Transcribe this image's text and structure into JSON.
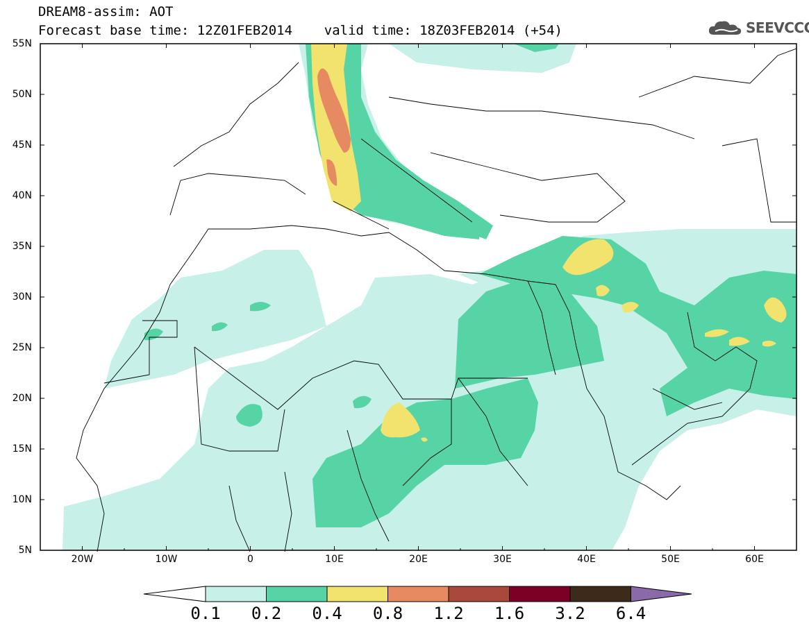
{
  "title": {
    "line1": "DREAM8-assim: AOT",
    "line2": "Forecast base time: 12Z01FEB2014    valid time: 18Z03FEB2014 (+54)"
  },
  "logo": {
    "text": "SEEVCCC",
    "icon": "cloud-icon"
  },
  "axes": {
    "lat_labels": [
      "55N",
      "50N",
      "45N",
      "40N",
      "35N",
      "30N",
      "25N",
      "20N",
      "15N",
      "10N",
      "5N"
    ],
    "lon_labels": [
      "20W",
      "10W",
      "0",
      "10E",
      "20E",
      "30E",
      "40E",
      "50E",
      "60E"
    ],
    "lon_range": [
      -25,
      65
    ],
    "lat_range": [
      5,
      55
    ]
  },
  "colorbar": {
    "levels": [
      "0.1",
      "0.2",
      "0.4",
      "0.8",
      "1.2",
      "1.6",
      "3.2",
      "6.4"
    ],
    "colors": [
      "#c6f0e8",
      "#57d4a6",
      "#f2e26e",
      "#e68a62",
      "#a8493b",
      "#7a0026",
      "#3d2a1a",
      "#8a6aa8"
    ]
  },
  "colors": {
    "c1": "#c6f0e8",
    "c2": "#57d4a6",
    "c3": "#f2e26e",
    "c4": "#e68a62",
    "c5": "#a8493b"
  }
}
